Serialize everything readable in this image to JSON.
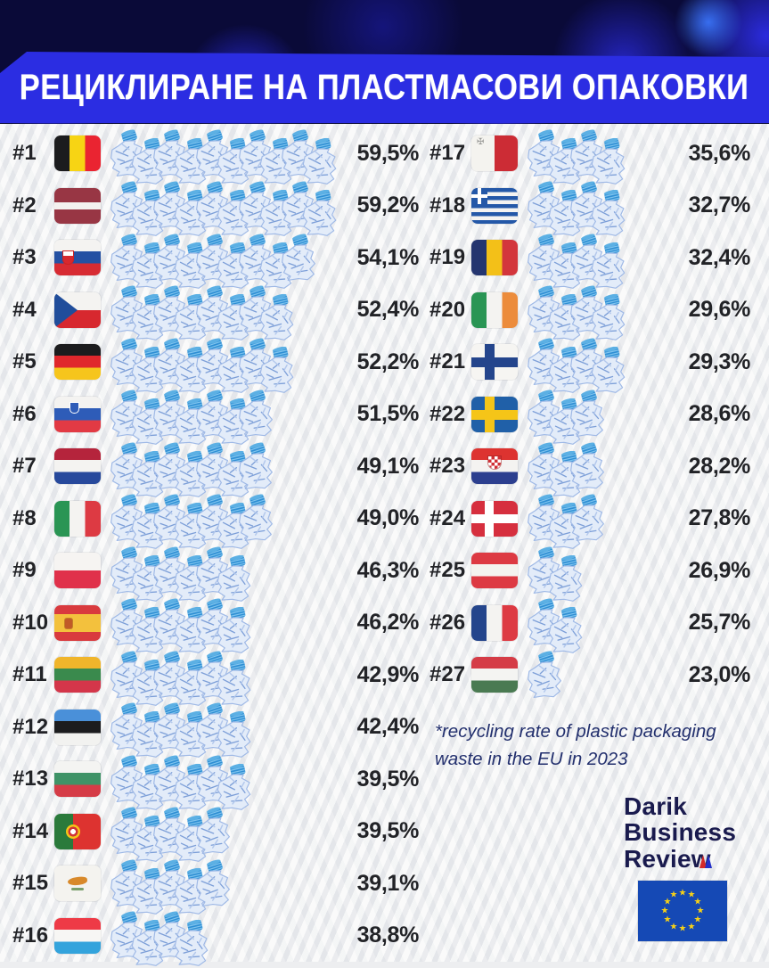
{
  "title": "РЕЦИКЛИРАНЕ НА ПЛАСТМАСОВИ ОПАКОВКИ",
  "footnote": "*recycling rate of plastic packaging waste in the EU in 2023",
  "brand": {
    "line1": "Darik",
    "line2": "Business",
    "line3": "Revie",
    "line3_last": "w"
  },
  "colors": {
    "banner": "#2b2de2",
    "header_bg": "#0a0a38",
    "text": "#222327",
    "footnote": "#23306e",
    "eu_blue": "#1549b5",
    "eu_star": "#f7d117"
  },
  "icons": {
    "row_pictogram": "crushed-plastic-bottle-icon",
    "eu_star": "star-icon"
  },
  "rows": [
    {
      "rank": "#1",
      "country": "Belgium",
      "code": "be",
      "pct": "59,5%",
      "bottles": 10
    },
    {
      "rank": "#2",
      "country": "Latvia",
      "code": "lv",
      "pct": "59,2%",
      "bottles": 10
    },
    {
      "rank": "#3",
      "country": "Slovakia",
      "code": "sk",
      "pct": "54,1%",
      "bottles": 9
    },
    {
      "rank": "#4",
      "country": "Czechia",
      "code": "cz",
      "pct": "52,4%",
      "bottles": 8
    },
    {
      "rank": "#5",
      "country": "Germany",
      "code": "de",
      "pct": "52,2%",
      "bottles": 8
    },
    {
      "rank": "#6",
      "country": "Slovenia",
      "code": "si",
      "pct": "51,5%",
      "bottles": 7
    },
    {
      "rank": "#7",
      "country": "Netherlands",
      "code": "nl",
      "pct": "49,1%",
      "bottles": 7
    },
    {
      "rank": "#8",
      "country": "Italy",
      "code": "it",
      "pct": "49,0%",
      "bottles": 7
    },
    {
      "rank": "#9",
      "country": "Poland",
      "code": "pl",
      "pct": "46,3%",
      "bottles": 6
    },
    {
      "rank": "#10",
      "country": "Spain",
      "code": "es",
      "pct": "46,2%",
      "bottles": 6
    },
    {
      "rank": "#11",
      "country": "Lithuania",
      "code": "lt",
      "pct": "42,9%",
      "bottles": 6
    },
    {
      "rank": "#12",
      "country": "Estonia",
      "code": "ee",
      "pct": "42,4%",
      "bottles": 6
    },
    {
      "rank": "#13",
      "country": "Bulgaria",
      "code": "bg",
      "pct": "39,5%",
      "bottles": 6
    },
    {
      "rank": "#14",
      "country": "Portugal",
      "code": "pt",
      "pct": "39,5%",
      "bottles": 5
    },
    {
      "rank": "#15",
      "country": "Cyprus",
      "code": "cy",
      "pct": "39,1%",
      "bottles": 5
    },
    {
      "rank": "#16",
      "country": "Luxembourg",
      "code": "lu",
      "pct": "38,8%",
      "bottles": 4
    },
    {
      "rank": "#17",
      "country": "Malta",
      "code": "mt",
      "pct": "35,6%",
      "bottles": 4
    },
    {
      "rank": "#18",
      "country": "Greece",
      "code": "gr",
      "pct": "32,7%",
      "bottles": 4
    },
    {
      "rank": "#19",
      "country": "Romania",
      "code": "ro",
      "pct": "32,4%",
      "bottles": 4
    },
    {
      "rank": "#20",
      "country": "Ireland",
      "code": "ie",
      "pct": "29,6%",
      "bottles": 4
    },
    {
      "rank": "#21",
      "country": "Finland",
      "code": "fi",
      "pct": "29,3%",
      "bottles": 4
    },
    {
      "rank": "#22",
      "country": "Sweden",
      "code": "se",
      "pct": "28,6%",
      "bottles": 3
    },
    {
      "rank": "#23",
      "country": "Croatia",
      "code": "hr",
      "pct": "28,2%",
      "bottles": 3
    },
    {
      "rank": "#24",
      "country": "Denmark",
      "code": "dk",
      "pct": "27,8%",
      "bottles": 3
    },
    {
      "rank": "#25",
      "country": "Austria",
      "code": "at",
      "pct": "26,9%",
      "bottles": 2
    },
    {
      "rank": "#26",
      "country": "France",
      "code": "fr",
      "pct": "25,7%",
      "bottles": 2
    },
    {
      "rank": "#27",
      "country": "Hungary",
      "code": "hu",
      "pct": "23,0%",
      "bottles": 1
    }
  ],
  "chart_data": {
    "type": "bar",
    "variant": "pictogram-ranking",
    "title": "РЕЦИКЛИРАНЕ НА ПЛАСТМАСОВИ ОПАКОВКИ",
    "note": "*recycling rate of plastic packaging waste in the EU in 2023",
    "unit": "%",
    "categories": [
      "Belgium",
      "Latvia",
      "Slovakia",
      "Czechia",
      "Germany",
      "Slovenia",
      "Netherlands",
      "Italy",
      "Poland",
      "Spain",
      "Lithuania",
      "Estonia",
      "Bulgaria",
      "Portugal",
      "Cyprus",
      "Luxembourg",
      "Malta",
      "Greece",
      "Romania",
      "Ireland",
      "Finland",
      "Sweden",
      "Croatia",
      "Denmark",
      "Austria",
      "France",
      "Hungary"
    ],
    "values": [
      59.5,
      59.2,
      54.1,
      52.4,
      52.2,
      51.5,
      49.1,
      49.0,
      46.3,
      46.2,
      42.9,
      42.4,
      39.5,
      39.5,
      39.1,
      38.8,
      35.6,
      32.7,
      32.4,
      29.6,
      29.3,
      28.6,
      28.2,
      27.8,
      26.9,
      25.7,
      23.0
    ],
    "ranks": [
      1,
      2,
      3,
      4,
      5,
      6,
      7,
      8,
      9,
      10,
      11,
      12,
      13,
      14,
      15,
      16,
      17,
      18,
      19,
      20,
      21,
      22,
      23,
      24,
      25,
      26,
      27
    ],
    "source": "Darik Business Review",
    "legend_position": "none",
    "grid": false
  }
}
